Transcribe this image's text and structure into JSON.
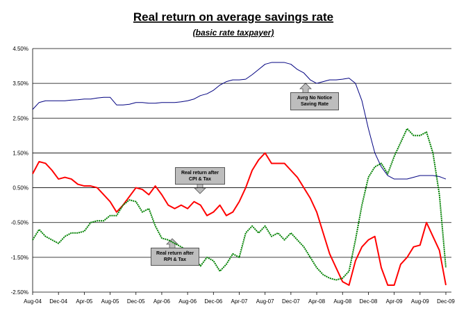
{
  "chart_data": {
    "type": "line",
    "title": "Real return on average savings rate",
    "subtitle": "(basic rate taxpayer)",
    "categories": [
      "Aug-04",
      null,
      null,
      null,
      "Dec-04",
      null,
      null,
      null,
      "Apr-05",
      null,
      null,
      null,
      "Aug-05",
      null,
      null,
      null,
      "Dec-05",
      null,
      null,
      null,
      "Apr-06",
      null,
      null,
      null,
      "Aug-06",
      null,
      null,
      null,
      "Dec-06",
      null,
      null,
      null,
      "Apr-07",
      null,
      null,
      null,
      "Aug-07",
      null,
      null,
      null,
      "Dec-07",
      null,
      null,
      null,
      "Apr-08",
      null,
      null,
      null,
      "Aug-08",
      null,
      null,
      null,
      "Dec-08",
      null,
      null,
      null,
      "Apr-09",
      null,
      null,
      null,
      "Aug-09",
      null,
      null,
      null,
      "Dec-09"
    ],
    "series": [
      {
        "name": "Avrg No Notice Saving Rate",
        "color": "#000080",
        "values": [
          2.75,
          2.95,
          3.0,
          3.0,
          3.0,
          3.0,
          3.02,
          3.03,
          3.05,
          3.05,
          3.08,
          3.1,
          3.1,
          2.88,
          2.88,
          2.9,
          2.95,
          2.95,
          2.93,
          2.93,
          2.95,
          2.95,
          2.95,
          2.97,
          3.0,
          3.05,
          3.15,
          3.2,
          3.3,
          3.45,
          3.55,
          3.6,
          3.6,
          3.62,
          3.75,
          3.9,
          4.05,
          4.1,
          4.1,
          4.1,
          4.05,
          3.9,
          3.8,
          3.6,
          3.5,
          3.55,
          3.6,
          3.6,
          3.62,
          3.65,
          3.5,
          3.0,
          2.2,
          1.5,
          1.1,
          0.85,
          0.75,
          0.75,
          0.75,
          0.8,
          0.85,
          0.85,
          0.85,
          0.82,
          0.75
        ]
      },
      {
        "name": "Real return after CPI & Tax",
        "color": "#ff0000",
        "values": [
          0.9,
          1.25,
          1.2,
          1.0,
          0.75,
          0.8,
          0.75,
          0.6,
          0.55,
          0.55,
          0.5,
          0.3,
          0.1,
          -0.2,
          0.0,
          0.25,
          0.5,
          0.45,
          0.3,
          0.55,
          0.3,
          0.0,
          -0.1,
          0.0,
          -0.1,
          0.1,
          0.0,
          -0.3,
          -0.2,
          0.0,
          -0.3,
          -0.2,
          0.1,
          0.5,
          1.0,
          1.3,
          1.5,
          1.2,
          1.2,
          1.2,
          1.0,
          0.8,
          0.5,
          0.2,
          -0.2,
          -0.8,
          -1.4,
          -1.8,
          -2.2,
          -2.3,
          -1.6,
          -1.2,
          -1.0,
          -0.9,
          -1.8,
          -2.3,
          -2.3,
          -1.7,
          -1.5,
          -1.2,
          -1.15,
          -0.5,
          -0.9,
          -1.3,
          -2.3
        ]
      },
      {
        "name": "Real return after RPI & Tax",
        "color": "#008000",
        "values": [
          -1.0,
          -0.7,
          -0.9,
          -1.0,
          -1.1,
          -0.9,
          -0.8,
          -0.8,
          -0.75,
          -0.5,
          -0.45,
          -0.45,
          -0.3,
          -0.3,
          0.0,
          0.15,
          0.1,
          -0.2,
          -0.1,
          -0.6,
          -0.95,
          -1.0,
          -1.1,
          -1.2,
          -1.3,
          -1.5,
          -1.75,
          -1.5,
          -1.6,
          -1.9,
          -1.7,
          -1.4,
          -1.5,
          -0.8,
          -0.6,
          -0.8,
          -0.6,
          -0.9,
          -0.8,
          -1.0,
          -0.8,
          -1.0,
          -1.2,
          -1.5,
          -1.8,
          -2.0,
          -2.1,
          -2.15,
          -2.1,
          -1.9,
          -1.0,
          0.0,
          0.8,
          1.1,
          1.2,
          0.9,
          1.4,
          1.8,
          2.2,
          2.0,
          2.0,
          2.1,
          1.5,
          0.3,
          -1.8
        ]
      }
    ],
    "ylim": [
      -2.5,
      4.5
    ],
    "yticks": [
      {
        "value": -2.5,
        "label": "-2.50%"
      },
      {
        "value": -1.5,
        "label": "-1.50%"
      },
      {
        "value": -0.5,
        "label": "-0.50%"
      },
      {
        "value": 0.5,
        "label": "0.50%"
      },
      {
        "value": 1.5,
        "label": "1.50%"
      },
      {
        "value": 2.5,
        "label": "2.50%"
      },
      {
        "value": 3.5,
        "label": "3.50%"
      },
      {
        "value": 4.5,
        "label": "4.50%"
      }
    ],
    "grid": true
  }
}
